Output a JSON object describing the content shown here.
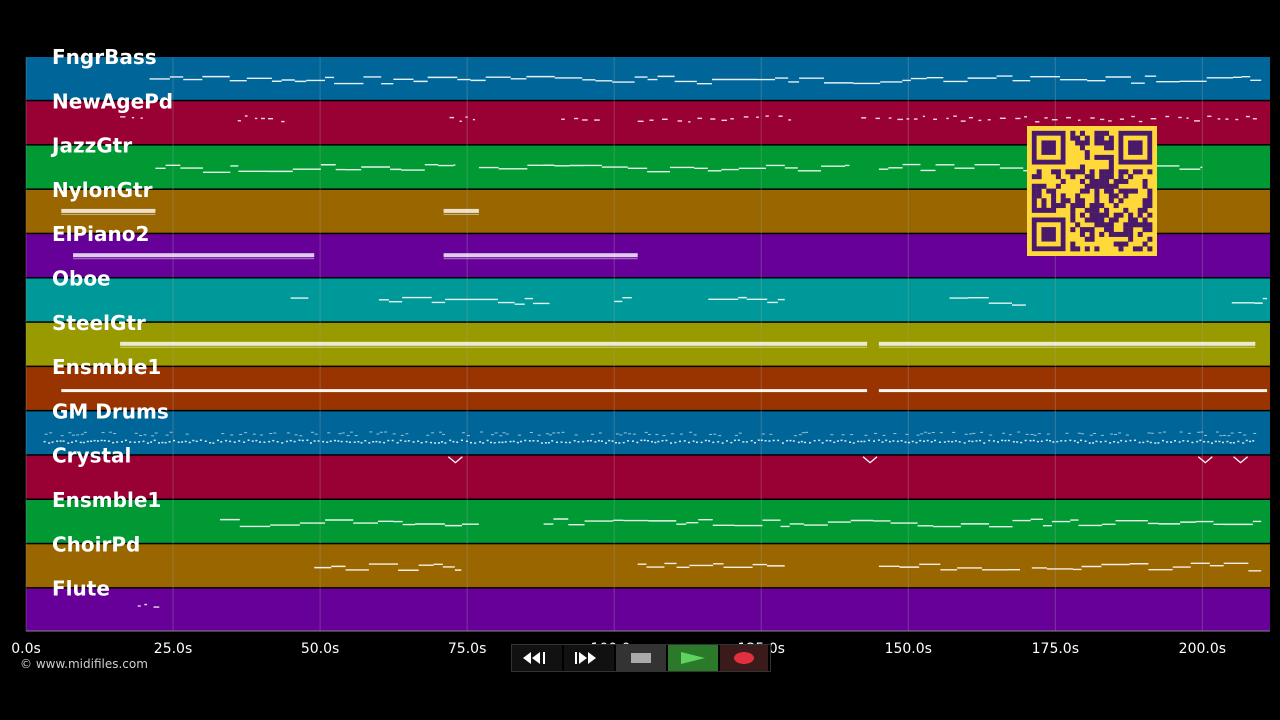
{
  "tracks": [
    {
      "name": "FngrBass",
      "color": "#006699"
    },
    {
      "name": "NewAgePd",
      "color": "#990033"
    },
    {
      "name": "JazzGtr",
      "color": "#009933"
    },
    {
      "name": "NylonGtr",
      "color": "#996600"
    },
    {
      "name": "ElPiano2",
      "color": "#660099"
    },
    {
      "name": "Oboe",
      "color": "#009999"
    },
    {
      "name": "SteelGtr",
      "color": "#999900"
    },
    {
      "name": "Ensmble1",
      "color": "#993300"
    },
    {
      "name": "GM Drums",
      "color": "#006699"
    },
    {
      "name": "Crystal",
      "color": "#990033"
    },
    {
      "name": "Ensmble1",
      "color": "#009933"
    },
    {
      "name": "ChoirPd",
      "color": "#996600"
    },
    {
      "name": "Flute",
      "color": "#660099"
    }
  ],
  "time_axis": {
    "max_seconds": 211.5,
    "ticks": [
      {
        "value": 0,
        "label": "0.0s"
      },
      {
        "value": 25,
        "label": "25.0s"
      },
      {
        "value": 50,
        "label": "50.0s"
      },
      {
        "value": 75,
        "label": "75.0s"
      },
      {
        "value": 100,
        "label": "100.0s"
      },
      {
        "value": 125,
        "label": "125.0s"
      },
      {
        "value": 150,
        "label": "150.0s"
      },
      {
        "value": 175,
        "label": "175.0s"
      },
      {
        "value": 200,
        "label": "200.0s"
      }
    ]
  },
  "note_segments": [
    {
      "track": 0,
      "start": 21,
      "end": 210,
      "style": "line"
    },
    {
      "track": 1,
      "start": 16,
      "end": 20,
      "style": "dash"
    },
    {
      "track": 1,
      "start": 36,
      "end": 44,
      "style": "dash"
    },
    {
      "track": 1,
      "start": 72,
      "end": 77,
      "style": "dash"
    },
    {
      "track": 1,
      "start": 91,
      "end": 98,
      "style": "dash"
    },
    {
      "track": 1,
      "start": 104,
      "end": 130,
      "style": "dash"
    },
    {
      "track": 1,
      "start": 142,
      "end": 209,
      "style": "dash"
    },
    {
      "track": 2,
      "start": 22,
      "end": 73,
      "style": "line"
    },
    {
      "track": 2,
      "start": 77,
      "end": 140,
      "style": "line"
    },
    {
      "track": 2,
      "start": 145,
      "end": 200,
      "style": "line"
    },
    {
      "track": 3,
      "start": 6,
      "end": 22,
      "style": "block"
    },
    {
      "track": 3,
      "start": 71,
      "end": 77,
      "style": "block"
    },
    {
      "track": 4,
      "start": 8,
      "end": 49,
      "style": "block"
    },
    {
      "track": 4,
      "start": 71,
      "end": 104,
      "style": "block"
    },
    {
      "track": 5,
      "start": 45,
      "end": 48,
      "style": "line"
    },
    {
      "track": 5,
      "start": 60,
      "end": 89,
      "style": "line"
    },
    {
      "track": 5,
      "start": 100,
      "end": 103,
      "style": "line"
    },
    {
      "track": 5,
      "start": 116,
      "end": 129,
      "style": "line"
    },
    {
      "track": 5,
      "start": 157,
      "end": 170,
      "style": "line"
    },
    {
      "track": 5,
      "start": 205,
      "end": 211,
      "style": "line"
    },
    {
      "track": 6,
      "start": 16,
      "end": 143,
      "style": "block"
    },
    {
      "track": 6,
      "start": 145,
      "end": 209,
      "style": "block"
    },
    {
      "track": 7,
      "start": 6,
      "end": 143,
      "style": "thick"
    },
    {
      "track": 7,
      "start": 145,
      "end": 211,
      "style": "thick"
    },
    {
      "track": 8,
      "start": 3,
      "end": 209,
      "style": "dots"
    },
    {
      "track": 9,
      "start": 73,
      "end": 73.5,
      "style": "chevron"
    },
    {
      "track": 9,
      "start": 143.5,
      "end": 144,
      "style": "chevron"
    },
    {
      "track": 9,
      "start": 200.5,
      "end": 201,
      "style": "chevron"
    },
    {
      "track": 9,
      "start": 206.5,
      "end": 207,
      "style": "chevron"
    },
    {
      "track": 10,
      "start": 33,
      "end": 77,
      "style": "line"
    },
    {
      "track": 10,
      "start": 88,
      "end": 210,
      "style": "line"
    },
    {
      "track": 11,
      "start": 49,
      "end": 74,
      "style": "line"
    },
    {
      "track": 11,
      "start": 104,
      "end": 129,
      "style": "line"
    },
    {
      "track": 11,
      "start": 145,
      "end": 169,
      "style": "line"
    },
    {
      "track": 11,
      "start": 171,
      "end": 210,
      "style": "line"
    },
    {
      "track": 12,
      "start": 19,
      "end": 22,
      "style": "dash"
    }
  ],
  "copyright": "© www.midifiles.com",
  "controls": [
    {
      "name": "rewind-button",
      "icon": "rewind-icon",
      "bg": "#111111"
    },
    {
      "name": "fast-forward-button",
      "icon": "fast-forward-icon",
      "bg": "#111111"
    },
    {
      "name": "stop-button",
      "icon": "stop-icon",
      "bg": "#333333"
    },
    {
      "name": "play-button",
      "icon": "play-icon",
      "bg": "#2a7a2a"
    },
    {
      "name": "record-button",
      "icon": "record-icon",
      "bg": "#3a1a1a"
    }
  ],
  "colors": {
    "grid": "#a0a0a0",
    "note": "#ffffff",
    "qr_bg": "#ffd93a",
    "qr_fg": "#4a1a6a"
  }
}
